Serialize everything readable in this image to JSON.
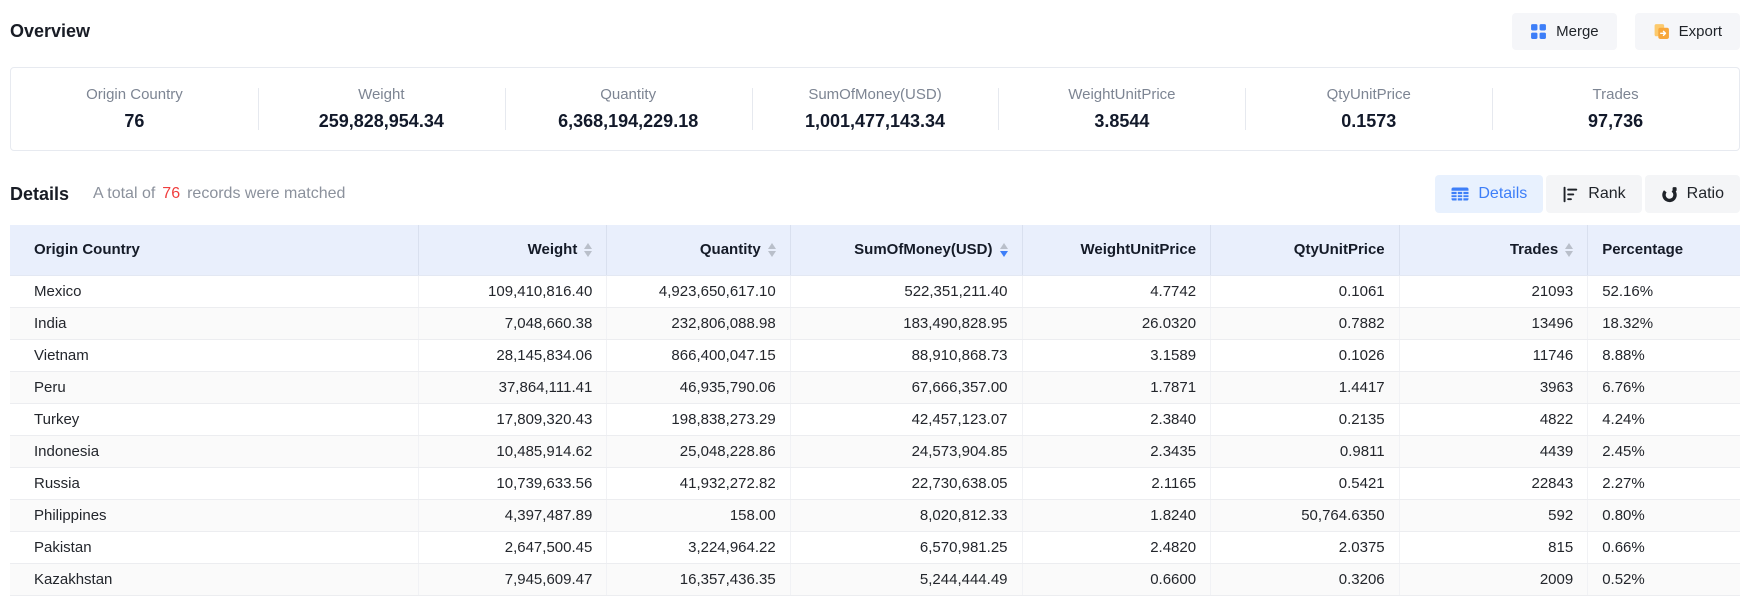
{
  "header": {
    "title": "Overview",
    "merge_label": "Merge",
    "export_label": "Export"
  },
  "overview_stats": [
    {
      "label": "Origin Country",
      "value": "76"
    },
    {
      "label": "Weight",
      "value": "259,828,954.34"
    },
    {
      "label": "Quantity",
      "value": "6,368,194,229.18"
    },
    {
      "label": "SumOfMoney(USD)",
      "value": "1,001,477,143.34"
    },
    {
      "label": "WeightUnitPrice",
      "value": "3.8544"
    },
    {
      "label": "QtyUnitPrice",
      "value": "0.1573"
    },
    {
      "label": "Trades",
      "value": "97,736"
    }
  ],
  "details": {
    "title": "Details",
    "match_prefix": "A total of",
    "match_count": "76",
    "match_suffix": "records were matched",
    "views": [
      {
        "key": "details",
        "label": "Details",
        "icon": "table-icon",
        "active": true
      },
      {
        "key": "rank",
        "label": "Rank",
        "icon": "rank-icon",
        "active": false
      },
      {
        "key": "ratio",
        "label": "Ratio",
        "icon": "ratio-icon",
        "active": false
      }
    ]
  },
  "table": {
    "columns": [
      {
        "key": "origin-country",
        "label": "Origin Country",
        "align": "left",
        "sortable": false,
        "sort": null
      },
      {
        "key": "weight",
        "label": "Weight",
        "align": "right",
        "sortable": true,
        "sort": null
      },
      {
        "key": "quantity",
        "label": "Quantity",
        "align": "right",
        "sortable": true,
        "sort": null
      },
      {
        "key": "sum-of-money-usd",
        "label": "SumOfMoney(USD)",
        "align": "right",
        "sortable": true,
        "sort": "desc"
      },
      {
        "key": "weight-unit-price",
        "label": "WeightUnitPrice",
        "align": "right",
        "sortable": false,
        "sort": null
      },
      {
        "key": "qty-unit-price",
        "label": "QtyUnitPrice",
        "align": "right",
        "sortable": false,
        "sort": null
      },
      {
        "key": "trades",
        "label": "Trades",
        "align": "right",
        "sortable": true,
        "sort": null
      },
      {
        "key": "percentage",
        "label": "Percentage",
        "align": "left",
        "sortable": false,
        "sort": null
      }
    ],
    "rows": [
      [
        "Mexico",
        "109,410,816.40",
        "4,923,650,617.10",
        "522,351,211.40",
        "4.7742",
        "0.1061",
        "21093",
        "52.16%"
      ],
      [
        "India",
        "7,048,660.38",
        "232,806,088.98",
        "183,490,828.95",
        "26.0320",
        "0.7882",
        "13496",
        "18.32%"
      ],
      [
        "Vietnam",
        "28,145,834.06",
        "866,400,047.15",
        "88,910,868.73",
        "3.1589",
        "0.1026",
        "11746",
        "8.88%"
      ],
      [
        "Peru",
        "37,864,111.41",
        "46,935,790.06",
        "67,666,357.00",
        "1.7871",
        "1.4417",
        "3963",
        "6.76%"
      ],
      [
        "Turkey",
        "17,809,320.43",
        "198,838,273.29",
        "42,457,123.07",
        "2.3840",
        "0.2135",
        "4822",
        "4.24%"
      ],
      [
        "Indonesia",
        "10,485,914.62",
        "25,048,228.86",
        "24,573,904.85",
        "2.3435",
        "0.9811",
        "4439",
        "2.45%"
      ],
      [
        "Russia",
        "10,739,633.56",
        "41,932,272.82",
        "22,730,638.05",
        "2.1165",
        "0.5421",
        "22843",
        "2.27%"
      ],
      [
        "Philippines",
        "4,397,487.89",
        "158.00",
        "8,020,812.33",
        "1.8240",
        "50,764.6350",
        "592",
        "0.80%"
      ],
      [
        "Pakistan",
        "2,647,500.45",
        "3,224,964.22",
        "6,570,981.25",
        "2.4820",
        "2.0375",
        "815",
        "0.66%"
      ],
      [
        "Kazakhstan",
        "7,945,609.47",
        "16,357,436.35",
        "5,244,444.49",
        "0.6600",
        "0.3206",
        "2009",
        "0.52%"
      ]
    ]
  },
  "colors": {
    "accent_blue": "#3d7ef8",
    "export_orange": "#f7a73c",
    "count_red": "#f03e3e",
    "header_bg": "#e9effc"
  }
}
